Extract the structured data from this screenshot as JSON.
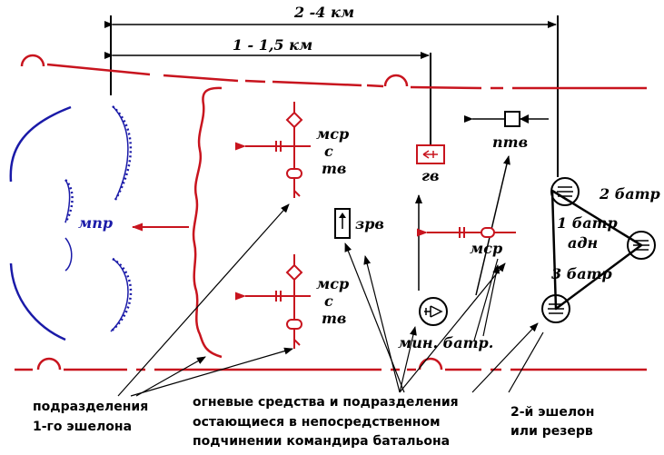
{
  "dimensions": {
    "total": "2 -4 км",
    "first": "1 - 1,5 км"
  },
  "labels": {
    "mpr": "мпр",
    "msr_top": [
      "мср",
      "с",
      "тв"
    ],
    "msr_bottom": [
      "мср",
      "с",
      "тв"
    ],
    "zrv": "зрв",
    "gv": "гв",
    "ptv": "птв",
    "msr_right": "мср",
    "min_batr": "мин. батр.",
    "batr2": "2 батр",
    "batr1": "1 батр",
    "adn": "адн",
    "batr3": "3 батр"
  },
  "captions": {
    "first_echelon": [
      "подразделения",
      "1-го эшелона"
    ],
    "fire_means": [
      "огневые средства и подразделения",
      "остающиеся в непосредственном",
      "подчинении командира батальона"
    ],
    "second_echelon": [
      "2-й эшелон",
      "или резерв"
    ]
  },
  "colors": {
    "red": "#c8141e",
    "blue": "#1a1aa8",
    "black": "#000000"
  }
}
